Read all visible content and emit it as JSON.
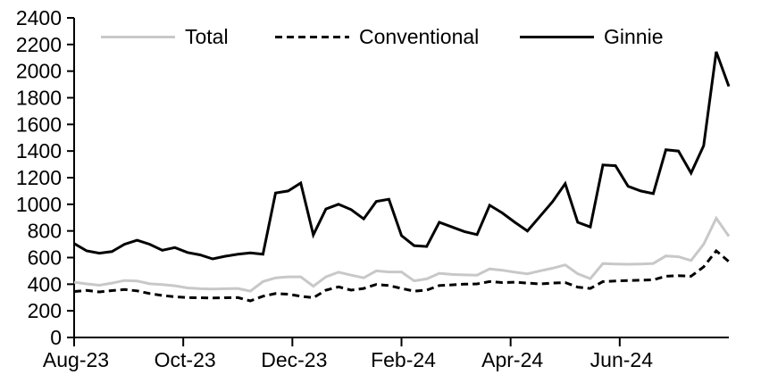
{
  "chart_data": {
    "type": "line",
    "title": "",
    "grid": false,
    "legend_position": "top",
    "x_axis": {
      "tick_labels": [
        "Aug-23",
        "Oct-23",
        "Dec-23",
        "Feb-24",
        "Apr-24",
        "Jun-24"
      ],
      "range_note": "weekly points from Aug-23 to Aug-24"
    },
    "y_axis": {
      "min": 0,
      "max": 2400,
      "step": 200,
      "tick_values": [
        0,
        200,
        400,
        600,
        800,
        1000,
        1200,
        1400,
        1600,
        1800,
        2000,
        2200,
        2400
      ]
    },
    "colors": {
      "axis": "#000000",
      "total_line": "#c8c8c8",
      "conventional_line": "#000000",
      "ginnie_line": "#000000"
    },
    "series": [
      {
        "name": "Total",
        "color": "#c8c8c8",
        "style": "solid",
        "values": [
          415,
          402,
          392,
          408,
          428,
          424,
          403,
          397,
          388,
          372,
          366,
          364,
          366,
          368,
          348,
          420,
          448,
          455,
          455,
          385,
          455,
          490,
          468,
          448,
          500,
          492,
          492,
          425,
          440,
          482,
          473,
          470,
          468,
          515,
          505,
          490,
          478,
          500,
          520,
          545,
          478,
          442,
          555,
          552,
          550,
          552,
          556,
          612,
          606,
          578,
          700,
          895,
          760
        ]
      },
      {
        "name": "Conventional",
        "color": "#000000",
        "style": "dashed",
        "values": [
          345,
          353,
          342,
          352,
          360,
          350,
          330,
          315,
          306,
          300,
          298,
          296,
          298,
          300,
          275,
          310,
          330,
          325,
          310,
          298,
          355,
          380,
          355,
          368,
          398,
          390,
          368,
          348,
          355,
          390,
          395,
          400,
          402,
          420,
          412,
          415,
          408,
          402,
          408,
          412,
          378,
          368,
          420,
          424,
          428,
          430,
          433,
          460,
          464,
          460,
          530,
          650,
          570
        ]
      },
      {
        "name": "Ginnie",
        "color": "#000000",
        "style": "solid",
        "values": [
          705,
          650,
          633,
          645,
          700,
          730,
          700,
          655,
          675,
          638,
          620,
          590,
          610,
          625,
          635,
          625,
          1085,
          1100,
          1160,
          770,
          965,
          1000,
          960,
          890,
          1022,
          1038,
          765,
          690,
          683,
          865,
          830,
          795,
          772,
          993,
          935,
          865,
          800,
          910,
          1020,
          1155,
          865,
          830,
          1295,
          1290,
          1135,
          1100,
          1080,
          1410,
          1400,
          1235,
          1440,
          2145,
          1885
        ]
      }
    ]
  }
}
